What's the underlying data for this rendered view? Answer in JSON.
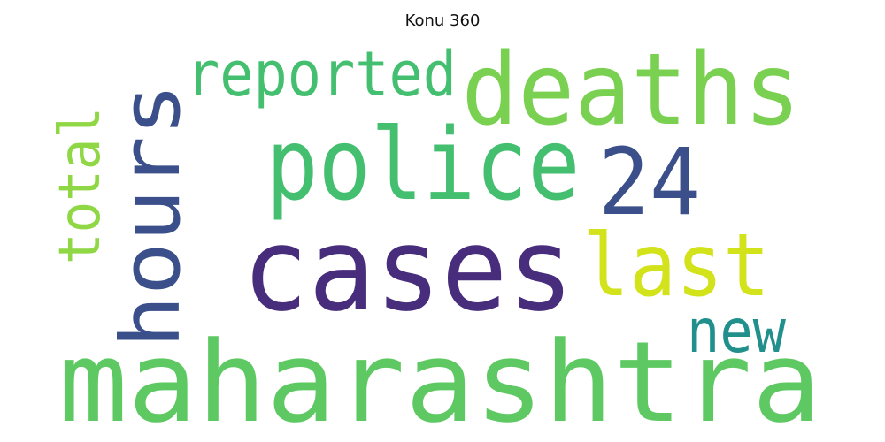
{
  "title": "Konu 360",
  "words": [
    {
      "text": "maharashtra",
      "color": "#5ec962",
      "rotated": false
    },
    {
      "text": "cases",
      "color": "#472d7b",
      "rotated": false
    },
    {
      "text": "hours",
      "color": "#3b4f8a",
      "rotated": true
    },
    {
      "text": "deaths",
      "color": "#7ad151",
      "rotated": false
    },
    {
      "text": "police",
      "color": "#44bf70",
      "rotated": false
    },
    {
      "text": "24",
      "color": "#3b4f8a",
      "rotated": false
    },
    {
      "text": "last",
      "color": "#d2e21b",
      "rotated": false
    },
    {
      "text": "reported",
      "color": "#44bf70",
      "rotated": false
    },
    {
      "text": "total",
      "color": "#8fd744",
      "rotated": true
    },
    {
      "text": "new",
      "color": "#21908d",
      "rotated": false
    }
  ]
}
